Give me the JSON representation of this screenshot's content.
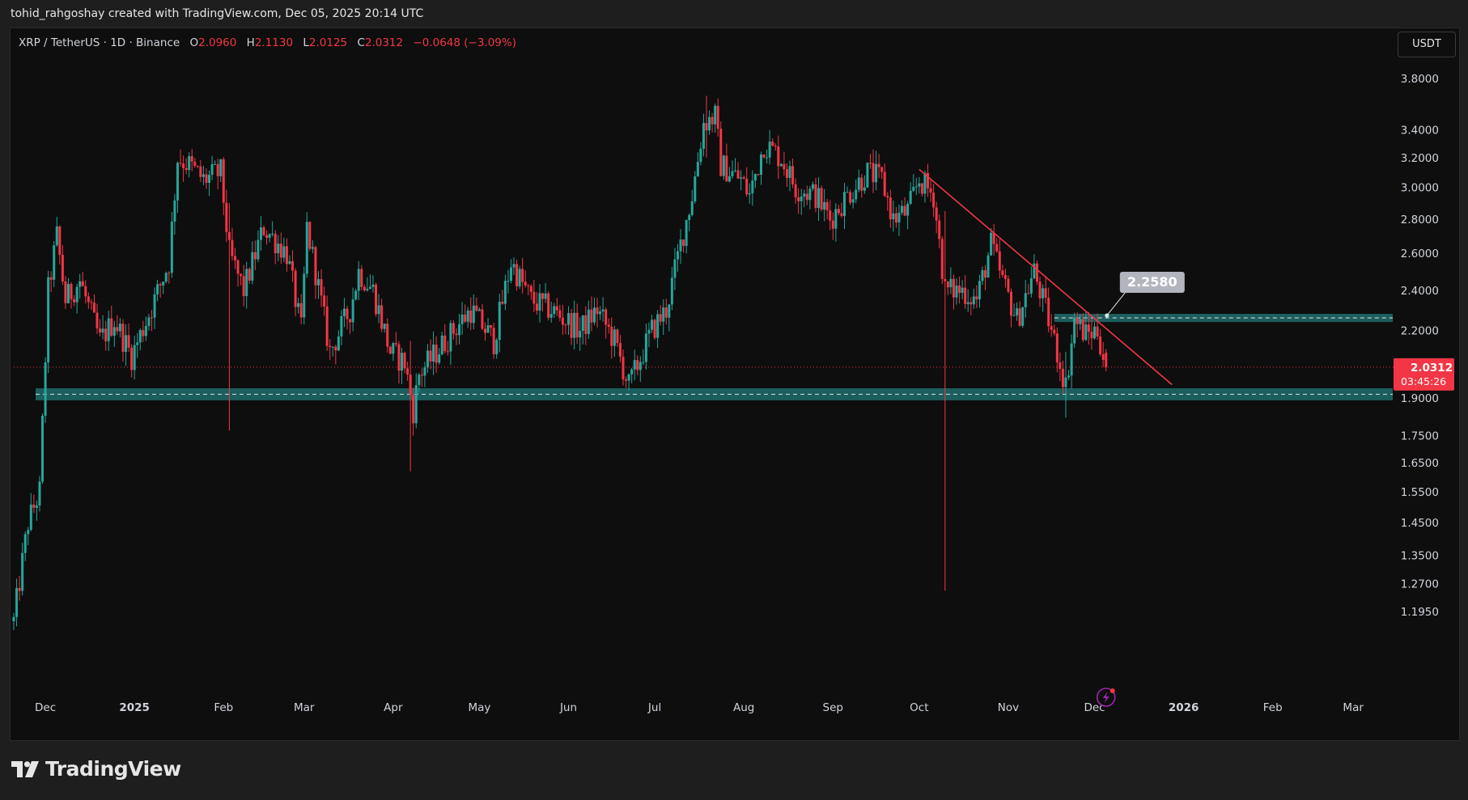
{
  "header": {
    "attribution": "tohid_rahgoshay created with TradingView.com, Dec 05, 2025 20:14 UTC"
  },
  "legend": {
    "symbol": "XRP / TetherUS · 1D · Binance",
    "o_label": "O",
    "o_value": "2.0960",
    "h_label": "H",
    "h_value": "2.1130",
    "l_label": "L",
    "l_value": "2.0125",
    "c_label": "C",
    "c_value": "2.0312",
    "change": "−0.0648 (−3.09%)"
  },
  "currency_button": "USDT",
  "price_tag": {
    "price": "2.0312",
    "countdown": "03:45:26"
  },
  "annotation": {
    "label": "2.2580"
  },
  "footer": {
    "brand": "TradingView"
  },
  "colors": {
    "up": "#26a69a",
    "down": "#f23645",
    "zone": "#1e6b6b",
    "trendline": "#f23645",
    "label_bg": "#b2b5be"
  },
  "chart_data": {
    "type": "candlestick",
    "symbol": "XRP / TetherUS",
    "interval": "1D",
    "exchange": "Binance",
    "y_scale": "log",
    "ylim": [
      1.15,
      4.0
    ],
    "y_ticks": [
      "3.8000",
      "3.4000",
      "3.2000",
      "3.0000",
      "2.8000",
      "2.6000",
      "2.4000",
      "2.2000",
      "1.9000",
      "1.7500",
      "1.6500",
      "1.5500",
      "1.4500",
      "1.3500",
      "1.2700",
      "1.1950"
    ],
    "x_ticks": [
      "Dec",
      "2025",
      "Feb",
      "Mar",
      "Apr",
      "May",
      "Jun",
      "Jul",
      "Aug",
      "Sep",
      "Oct",
      "Nov",
      "Dec",
      "2026",
      "Feb",
      "Mar"
    ],
    "x_tick_dates": [
      "2024-12-01",
      "2025-01-01",
      "2025-02-01",
      "2025-03-01",
      "2025-04-01",
      "2025-05-01",
      "2025-06-01",
      "2025-07-01",
      "2025-08-01",
      "2025-09-01",
      "2025-10-01",
      "2025-11-01",
      "2025-12-01",
      "2026-01-01",
      "2026-02-01",
      "2026-03-01"
    ],
    "x_range": [
      "2024-11-20",
      "2026-03-17"
    ],
    "last_date": "2025-12-05",
    "keypoints": [
      {
        "date": "2024-11-20",
        "close": 1.17
      },
      {
        "date": "2024-11-25",
        "close": 1.45
      },
      {
        "date": "2024-11-29",
        "close": 1.55
      },
      {
        "date": "2024-12-02",
        "close": 2.4
      },
      {
        "date": "2024-12-05",
        "close": 2.7
      },
      {
        "date": "2024-12-08",
        "close": 2.35
      },
      {
        "date": "2024-12-13",
        "close": 2.45
      },
      {
        "date": "2024-12-20",
        "close": 2.15
      },
      {
        "date": "2024-12-25",
        "close": 2.25
      },
      {
        "date": "2024-12-31",
        "close": 2.08
      },
      {
        "date": "2025-01-08",
        "close": 2.35
      },
      {
        "date": "2025-01-13",
        "close": 2.55
      },
      {
        "date": "2025-01-16",
        "close": 3.2
      },
      {
        "date": "2025-01-20",
        "close": 3.15
      },
      {
        "date": "2025-01-25",
        "close": 3.05
      },
      {
        "date": "2025-01-31",
        "close": 3.1
      },
      {
        "date": "2025-02-03",
        "close": 2.6
      },
      {
        "date": "2025-02-08",
        "close": 2.4
      },
      {
        "date": "2025-02-15",
        "close": 2.75
      },
      {
        "date": "2025-02-23",
        "close": 2.6
      },
      {
        "date": "2025-02-28",
        "close": 2.2
      },
      {
        "date": "2025-03-02",
        "close": 2.75
      },
      {
        "date": "2025-03-05",
        "close": 2.5
      },
      {
        "date": "2025-03-10",
        "close": 2.1
      },
      {
        "date": "2025-03-17",
        "close": 2.3
      },
      {
        "date": "2025-03-20",
        "close": 2.5
      },
      {
        "date": "2025-03-25",
        "close": 2.4
      },
      {
        "date": "2025-03-31",
        "close": 2.1
      },
      {
        "date": "2025-04-05",
        "close": 2.05
      },
      {
        "date": "2025-04-08",
        "close": 1.85
      },
      {
        "date": "2025-04-10",
        "close": 2.0
      },
      {
        "date": "2025-04-22",
        "close": 2.2
      },
      {
        "date": "2025-04-28",
        "close": 2.3
      },
      {
        "date": "2025-05-06",
        "close": 2.15
      },
      {
        "date": "2025-05-12",
        "close": 2.55
      },
      {
        "date": "2025-05-19",
        "close": 2.35
      },
      {
        "date": "2025-05-26",
        "close": 2.3
      },
      {
        "date": "2025-06-05",
        "close": 2.2
      },
      {
        "date": "2025-06-11",
        "close": 2.3
      },
      {
        "date": "2025-06-17",
        "close": 2.15
      },
      {
        "date": "2025-06-22",
        "close": 1.95
      },
      {
        "date": "2025-06-30",
        "close": 2.2
      },
      {
        "date": "2025-07-05",
        "close": 2.3
      },
      {
        "date": "2025-07-10",
        "close": 2.65
      },
      {
        "date": "2025-07-14",
        "close": 2.95
      },
      {
        "date": "2025-07-18",
        "close": 3.45
      },
      {
        "date": "2025-07-22",
        "close": 3.5
      },
      {
        "date": "2025-07-24",
        "close": 3.15
      },
      {
        "date": "2025-07-31",
        "close": 3.05
      },
      {
        "date": "2025-08-03",
        "close": 2.95
      },
      {
        "date": "2025-08-08",
        "close": 3.3
      },
      {
        "date": "2025-08-14",
        "close": 3.2
      },
      {
        "date": "2025-08-19",
        "close": 3.0
      },
      {
        "date": "2025-08-26",
        "close": 2.95
      },
      {
        "date": "2025-08-31",
        "close": 2.8
      },
      {
        "date": "2025-09-06",
        "close": 2.95
      },
      {
        "date": "2025-09-13",
        "close": 3.1
      },
      {
        "date": "2025-09-18",
        "close": 3.05
      },
      {
        "date": "2025-09-22",
        "close": 2.8
      },
      {
        "date": "2025-09-27",
        "close": 2.85
      },
      {
        "date": "2025-10-01",
        "close": 3.05
      },
      {
        "date": "2025-10-06",
        "close": 2.95
      },
      {
        "date": "2025-10-10",
        "close": 2.4
      },
      {
        "date": "2025-10-16",
        "close": 2.4
      },
      {
        "date": "2025-10-21",
        "close": 2.35
      },
      {
        "date": "2025-10-26",
        "close": 2.65
      },
      {
        "date": "2025-10-30",
        "close": 2.45
      },
      {
        "date": "2025-11-04",
        "close": 2.25
      },
      {
        "date": "2025-11-10",
        "close": 2.5
      },
      {
        "date": "2025-11-14",
        "close": 2.3
      },
      {
        "date": "2025-11-18",
        "close": 2.1
      },
      {
        "date": "2025-11-21",
        "close": 1.95
      },
      {
        "date": "2025-11-24",
        "close": 2.25
      },
      {
        "date": "2025-11-28",
        "close": 2.18
      },
      {
        "date": "2025-12-02",
        "close": 2.2
      },
      {
        "date": "2025-12-05",
        "close": 2.0312
      }
    ],
    "spikes": [
      {
        "date": "2025-10-10",
        "low": 1.25,
        "high": 2.85
      },
      {
        "date": "2025-04-07",
        "low": 1.62,
        "high": 2.15
      },
      {
        "date": "2025-02-03",
        "low": 1.77,
        "high": 2.9
      },
      {
        "date": "2025-07-19",
        "low": 3.2,
        "high": 3.66
      },
      {
        "date": "2025-11-21",
        "low": 1.82,
        "high": 2.1
      }
    ],
    "support_zone": [
      1.89,
      1.94
    ],
    "resistance_zone": [
      2.24,
      2.28
    ],
    "trendline": {
      "start_date": "2025-10-01",
      "start_price": 3.12,
      "end_date": "2025-12-28",
      "end_price": 1.955
    },
    "annotation_price": 2.258,
    "last_price": 2.0312
  }
}
